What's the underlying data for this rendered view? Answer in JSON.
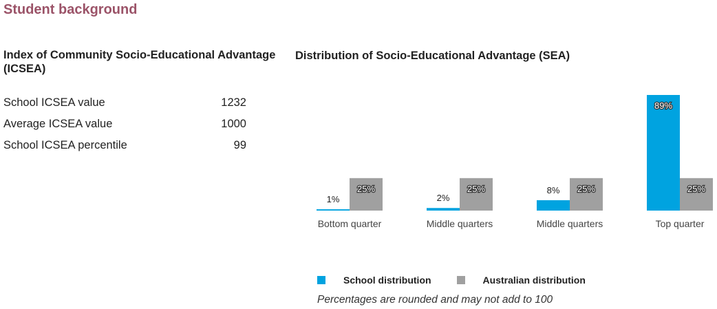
{
  "page": {
    "section_title": "Student background"
  },
  "icsea": {
    "heading": "Index of Community Socio-Educational Advantage (ICSEA)",
    "rows": [
      {
        "label": "School ICSEA value",
        "value": "1232"
      },
      {
        "label": "Average ICSEA value",
        "value": "1000"
      },
      {
        "label": "School ICSEA percentile",
        "value": "99"
      }
    ]
  },
  "sea_heading": "Distribution of Socio-Educational Advantage (SEA)",
  "chart_data": {
    "type": "bar",
    "title": "Distribution of Socio-Educational Advantage (SEA)",
    "categories": [
      "Bottom quarter",
      "Middle quarters",
      "Middle quarters",
      "Top quarter"
    ],
    "series": [
      {
        "name": "School distribution",
        "values": [
          1,
          2,
          8,
          89
        ],
        "labels": [
          "1%",
          "2%",
          "8%",
          "89%"
        ],
        "color": "#00a3e0"
      },
      {
        "name": "Australian distribution",
        "values": [
          25,
          25,
          25,
          25
        ],
        "labels": [
          "25%",
          "25%",
          "25%",
          "25%"
        ],
        "color": "#a0a0a0"
      }
    ],
    "ylim": [
      0,
      89
    ],
    "grid": false,
    "legend_position": "bottom"
  },
  "footnote": "Percentages are rounded and may not add to 100"
}
